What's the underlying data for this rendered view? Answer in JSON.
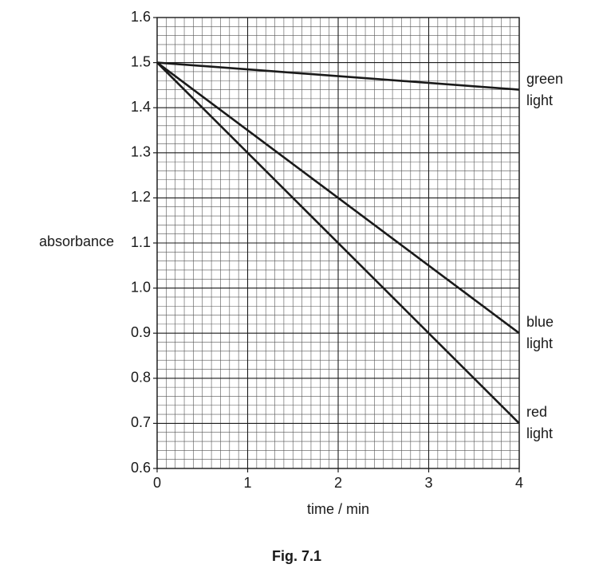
{
  "chart_data": {
    "type": "line",
    "x_label": "time / min",
    "y_label": "absorbance",
    "caption": "Fig. 7.1",
    "x": [
      0,
      4
    ],
    "series": [
      {
        "name": "green light",
        "color": "#1a1a1a",
        "values": [
          1.5,
          1.44
        ]
      },
      {
        "name": "blue light",
        "color": "#1a1a1a",
        "values": [
          1.5,
          0.9
        ]
      },
      {
        "name": "red light",
        "color": "#1a1a1a",
        "values": [
          1.5,
          0.7
        ]
      }
    ],
    "xlim": [
      0,
      4
    ],
    "xticks": [
      0,
      1,
      2,
      3,
      4
    ],
    "ylim": [
      0.6,
      1.6
    ],
    "yticks": [
      0.6,
      0.7,
      0.8,
      0.9,
      {
        "value": 1,
        "label": "1.0"
      },
      1.1,
      1.2,
      1.3,
      1.4,
      1.5,
      1.6
    ],
    "grid": true
  }
}
